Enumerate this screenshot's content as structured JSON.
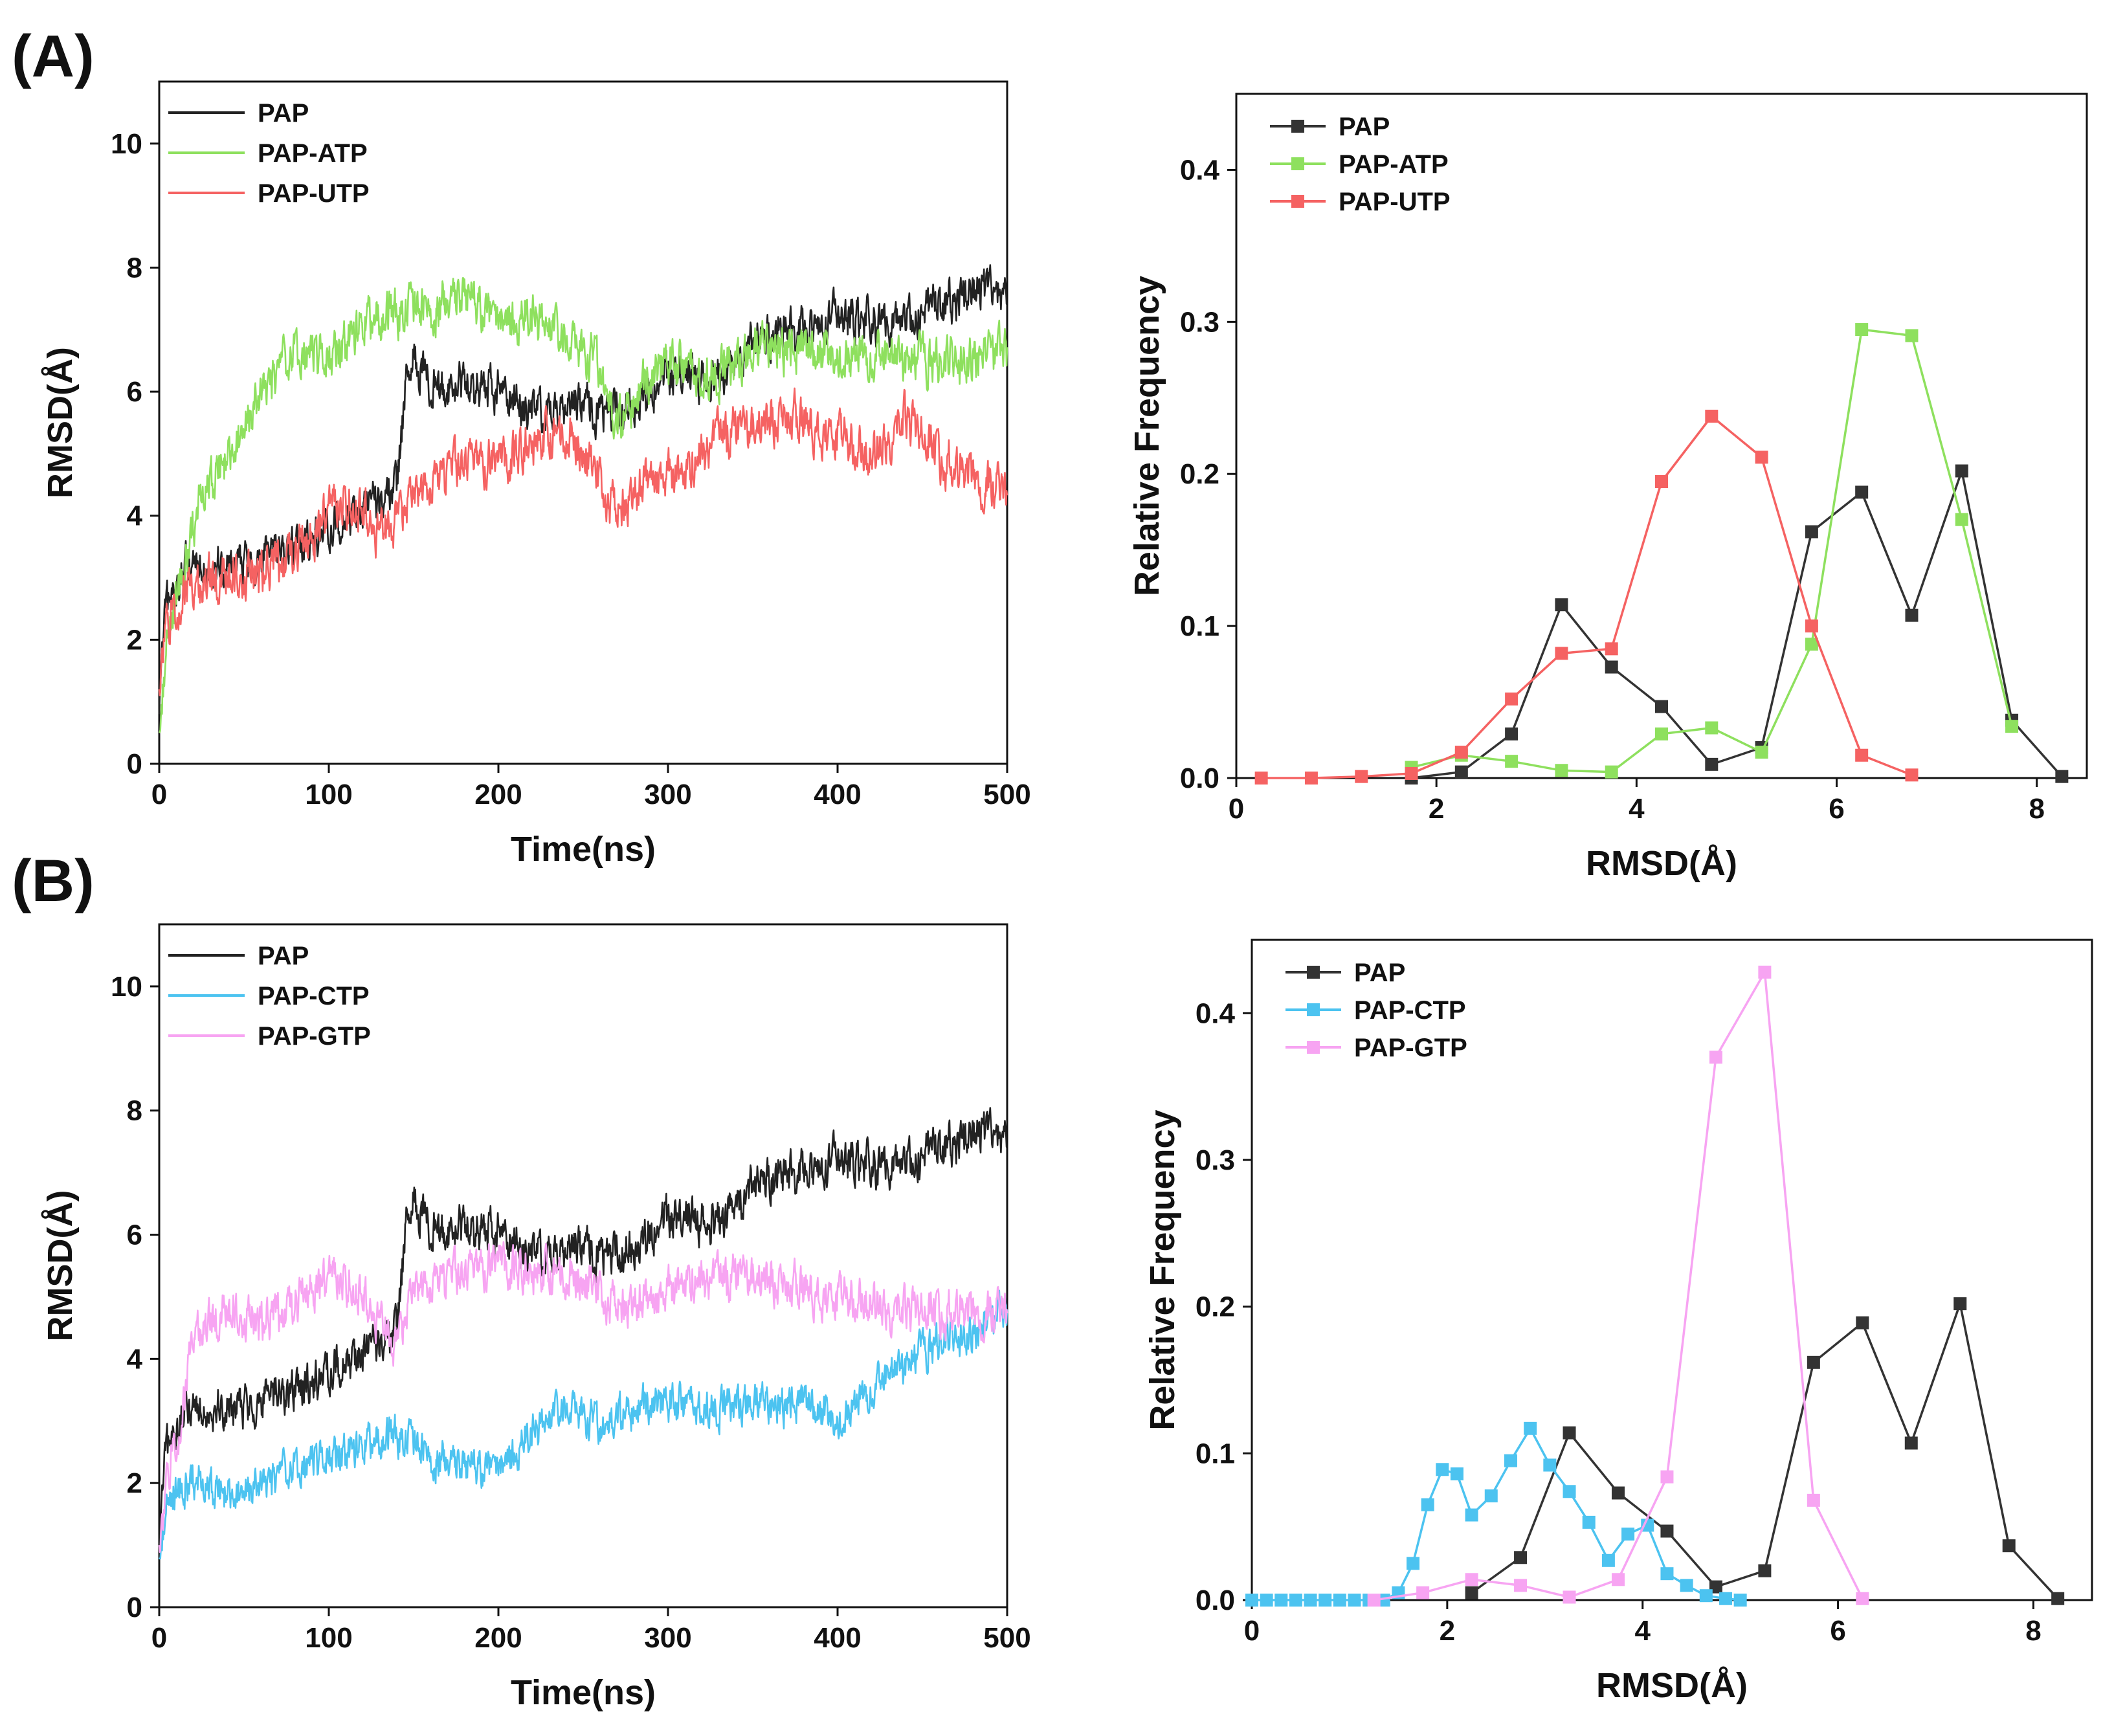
{
  "panel_labels": [
    "(A)",
    "(B)"
  ],
  "chart_data": [
    {
      "type": "line",
      "panel": "A",
      "title": "",
      "xlabel": "Time(ns)",
      "ylabel": "RMSD(Å)",
      "xlim": [
        0,
        500
      ],
      "ylim": [
        0,
        11
      ],
      "xticks": [
        0,
        100,
        200,
        300,
        400,
        500
      ],
      "yticks": [
        0,
        2,
        4,
        6,
        8,
        10
      ],
      "legend_position": "top-left",
      "series": [
        {
          "name": "PAP",
          "color": "#222222",
          "noise": 0.28,
          "x": [
            0,
            3,
            10,
            20,
            40,
            60,
            80,
            100,
            120,
            140,
            145,
            150,
            160,
            180,
            200,
            220,
            250,
            270,
            300,
            330,
            350,
            400,
            430,
            450,
            480,
            500
          ],
          "y": [
            0.8,
            2.3,
            2.9,
            3.3,
            3.2,
            3.3,
            3.5,
            3.8,
            4.1,
            4.4,
            6.0,
            6.5,
            6.1,
            6.1,
            6.0,
            5.7,
            5.8,
            5.6,
            6.3,
            6.2,
            6.8,
            7.2,
            7.1,
            7.3,
            7.6,
            7.6
          ]
        },
        {
          "name": "PAP-ATP",
          "color": "#8ee05e",
          "noise": 0.3,
          "x": [
            0,
            5,
            15,
            25,
            40,
            60,
            80,
            100,
            120,
            140,
            160,
            180,
            200,
            220,
            240,
            260,
            270,
            280,
            300,
            320,
            340,
            360,
            400,
            440,
            470,
            500
          ],
          "y": [
            0.5,
            2.2,
            3.2,
            4.3,
            4.9,
            6.0,
            6.6,
            6.5,
            7.1,
            7.3,
            7.3,
            7.6,
            7.1,
            7.2,
            6.8,
            6.4,
            5.4,
            5.9,
            6.5,
            6.2,
            6.5,
            6.7,
            6.6,
            6.5,
            6.5,
            6.6
          ]
        },
        {
          "name": "PAP-UTP",
          "color": "#f56262",
          "noise": 0.3,
          "x": [
            0,
            3,
            10,
            30,
            60,
            90,
            100,
            120,
            130,
            150,
            180,
            200,
            220,
            240,
            260,
            270,
            290,
            310,
            330,
            350,
            370,
            400,
            420,
            440,
            470,
            500
          ],
          "y": [
            1.2,
            2.2,
            2.6,
            3.0,
            3.1,
            3.6,
            4.1,
            4.2,
            3.6,
            4.3,
            4.9,
            4.9,
            5.2,
            5.4,
            4.6,
            4.0,
            4.7,
            4.6,
            5.3,
            5.4,
            5.6,
            5.3,
            4.9,
            5.6,
            4.7,
            4.4
          ]
        }
      ]
    },
    {
      "type": "line",
      "panel": "A",
      "markers": "square",
      "title": "",
      "xlabel": "RMSD(Å)",
      "ylabel": "Relative Frequency",
      "xlim": [
        0,
        8.5
      ],
      "ylim": [
        0,
        0.45
      ],
      "xticks": [
        0,
        2,
        4,
        6,
        8
      ],
      "yticks": [
        0.0,
        0.1,
        0.2,
        0.3,
        0.4
      ],
      "ytick_labels": [
        "0.0",
        "0.1",
        "0.2",
        "0.3",
        "0.4"
      ],
      "legend_position": "top-left",
      "series": [
        {
          "name": "PAP",
          "color": "#333333",
          "x": [
            1.75,
            2.25,
            2.75,
            3.25,
            3.75,
            4.25,
            4.75,
            5.25,
            5.75,
            6.25,
            6.75,
            7.25,
            7.75,
            8.25
          ],
          "y": [
            0.0,
            0.004,
            0.029,
            0.114,
            0.073,
            0.047,
            0.009,
            0.02,
            0.162,
            0.188,
            0.107,
            0.202,
            0.038,
            0.001
          ]
        },
        {
          "name": "PAP-ATP",
          "color": "#8ee05e",
          "x": [
            1.75,
            2.25,
            2.75,
            3.25,
            3.75,
            4.25,
            4.75,
            5.25,
            5.75,
            6.25,
            6.75,
            7.25,
            7.75
          ],
          "y": [
            0.007,
            0.015,
            0.011,
            0.005,
            0.004,
            0.029,
            0.033,
            0.017,
            0.088,
            0.295,
            0.291,
            0.17,
            0.034
          ]
        },
        {
          "name": "PAP-UTP",
          "color": "#f56262",
          "x": [
            0.25,
            0.75,
            1.25,
            1.75,
            2.25,
            2.75,
            3.25,
            3.75,
            4.25,
            4.75,
            5.25,
            5.75,
            6.25,
            6.75
          ],
          "y": [
            0.0,
            0.0,
            0.001,
            0.003,
            0.017,
            0.052,
            0.082,
            0.085,
            0.195,
            0.238,
            0.211,
            0.1,
            0.015,
            0.002
          ]
        }
      ]
    },
    {
      "type": "line",
      "panel": "B",
      "title": "",
      "xlabel": "Time(ns)",
      "ylabel": "RMSD(Å)",
      "xlim": [
        0,
        500
      ],
      "ylim": [
        0,
        11
      ],
      "xticks": [
        0,
        100,
        200,
        300,
        400,
        500
      ],
      "yticks": [
        0,
        2,
        4,
        6,
        8,
        10
      ],
      "legend_position": "top-left",
      "series": [
        {
          "name": "PAP",
          "color": "#222222",
          "noise": 0.28,
          "x": [
            0,
            3,
            10,
            20,
            40,
            60,
            80,
            100,
            120,
            140,
            145,
            150,
            160,
            180,
            200,
            220,
            250,
            270,
            300,
            330,
            350,
            400,
            430,
            450,
            480,
            500
          ],
          "y": [
            0.8,
            2.3,
            2.9,
            3.3,
            3.2,
            3.3,
            3.5,
            3.8,
            4.1,
            4.4,
            6.0,
            6.5,
            6.1,
            6.1,
            6.0,
            5.7,
            5.8,
            5.6,
            6.3,
            6.2,
            6.8,
            7.2,
            7.1,
            7.3,
            7.6,
            7.6
          ]
        },
        {
          "name": "PAP-CTP",
          "color": "#4cc3f0",
          "noise": 0.25,
          "x": [
            0,
            5,
            20,
            40,
            60,
            80,
            100,
            120,
            140,
            160,
            180,
            200,
            220,
            240,
            260,
            280,
            300,
            320,
            340,
            360,
            380,
            400,
            420,
            440,
            460,
            480,
            500
          ],
          "y": [
            0.8,
            1.8,
            2.0,
            1.8,
            2.0,
            2.2,
            2.4,
            2.6,
            2.8,
            2.4,
            2.3,
            2.2,
            2.8,
            3.2,
            2.9,
            3.2,
            3.3,
            3.2,
            3.3,
            3.2,
            3.3,
            3.0,
            3.5,
            3.9,
            4.3,
            4.4,
            4.7
          ]
        },
        {
          "name": "PAP-GTP",
          "color": "#f7a4f2",
          "noise": 0.28,
          "x": [
            0,
            5,
            15,
            20,
            40,
            60,
            80,
            100,
            120,
            130,
            140,
            150,
            180,
            200,
            220,
            240,
            260,
            270,
            300,
            330,
            350,
            400,
            430,
            450,
            480,
            500
          ],
          "y": [
            1.0,
            2.2,
            3.3,
            4.4,
            4.8,
            4.6,
            4.9,
            5.3,
            5.1,
            4.5,
            4.2,
            5.1,
            5.4,
            5.6,
            5.4,
            5.4,
            5.1,
            4.8,
            5.1,
            5.3,
            5.3,
            5.0,
            4.8,
            4.8,
            4.7,
            4.8
          ]
        }
      ]
    },
    {
      "type": "line",
      "panel": "B",
      "markers": "square",
      "title": "",
      "xlabel": "RMSD(Å)",
      "ylabel": "Relative Frequency",
      "xlim": [
        0,
        8.6
      ],
      "ylim": [
        0,
        0.45
      ],
      "xticks": [
        0,
        2,
        4,
        6,
        8
      ],
      "yticks": [
        0.0,
        0.1,
        0.2,
        0.3,
        0.4
      ],
      "ytick_labels": [
        "0.0",
        "0.1",
        "0.2",
        "0.3",
        "0.4"
      ],
      "legend_position": "top-left",
      "series": [
        {
          "name": "PAP",
          "color": "#333333",
          "x": [
            2.25,
            2.75,
            3.25,
            3.75,
            4.25,
            4.75,
            5.25,
            5.75,
            6.25,
            6.75,
            7.25,
            7.75,
            8.25
          ],
          "y": [
            0.005,
            0.029,
            0.114,
            0.073,
            0.047,
            0.009,
            0.02,
            0.162,
            0.189,
            0.107,
            0.202,
            0.037,
            0.001
          ]
        },
        {
          "name": "PAP-CTP",
          "color": "#4cc3f0",
          "x": [
            0.0,
            0.15,
            0.3,
            0.45,
            0.6,
            0.75,
            0.9,
            1.05,
            1.2,
            1.35,
            1.5,
            1.65,
            1.8,
            1.95,
            2.1,
            2.25,
            2.45,
            2.65,
            2.85,
            3.05,
            3.25,
            3.45,
            3.65,
            3.85,
            4.05,
            4.25,
            4.45,
            4.65,
            4.85,
            5.0
          ],
          "y": [
            0,
            0,
            0,
            0,
            0,
            0,
            0,
            0,
            0,
            0,
            0.005,
            0.025,
            0.065,
            0.089,
            0.086,
            0.058,
            0.071,
            0.095,
            0.117,
            0.092,
            0.074,
            0.053,
            0.027,
            0.045,
            0.051,
            0.018,
            0.01,
            0.003,
            0.001,
            0
          ]
        },
        {
          "name": "PAP-GTP",
          "color": "#f7a4f2",
          "x": [
            1.25,
            1.75,
            2.25,
            2.75,
            3.25,
            3.75,
            4.25,
            4.75,
            5.25,
            5.75,
            6.25
          ],
          "y": [
            0.0,
            0.005,
            0.014,
            0.01,
            0.002,
            0.014,
            0.084,
            0.37,
            0.428,
            0.068,
            0.001
          ]
        }
      ]
    }
  ]
}
